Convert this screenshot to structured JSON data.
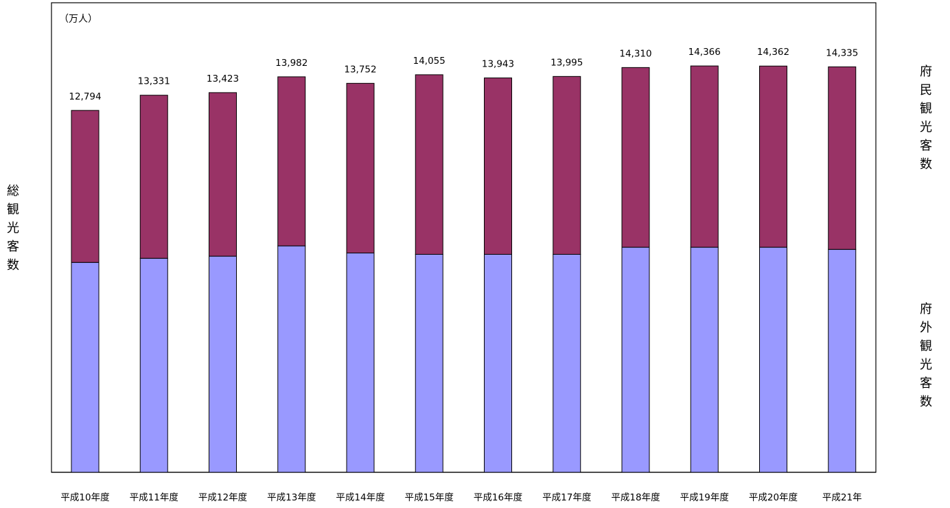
{
  "chart_data": {
    "type": "bar",
    "stacked": true,
    "unit_label": "（万人）",
    "categories": [
      "平成10年度",
      "平成11年度",
      "平成12年度",
      "平成13年度",
      "平成14年度",
      "平成15年度",
      "平成16年度",
      "平成17年度",
      "平成18年度",
      "平成19年度",
      "平成20年度",
      "平成21年"
    ],
    "series": [
      {
        "name": "府外観光客数",
        "color": "#9999ff",
        "values": [
          7420,
          7566,
          7641,
          8005,
          7753,
          7706,
          7706,
          7706,
          7957,
          7957,
          7957,
          7881
        ]
      },
      {
        "name": "府民観光客数",
        "color": "#993366",
        "values": [
          5374,
          5765,
          5782,
          5977,
          5999,
          6349,
          6237,
          6289,
          6353,
          6409,
          6405,
          6454
        ]
      }
    ],
    "totals": [
      12794,
      13331,
      13423,
      13982,
      13752,
      14055,
      13943,
      13995,
      14310,
      14366,
      14362,
      14335
    ],
    "total_labels": [
      "12,794",
      "13,331",
      "13,423",
      "13,982",
      "13,752",
      "14,055",
      "13,943",
      "13,995",
      "14,310",
      "14,366",
      "14,362",
      "14,335"
    ],
    "ylabel": "総観光客数",
    "right_top_label": "府民観光客数",
    "right_bottom_label": "府外観光客数",
    "ylim": [
      0,
      16600
    ],
    "grid": false,
    "legend": "none"
  }
}
